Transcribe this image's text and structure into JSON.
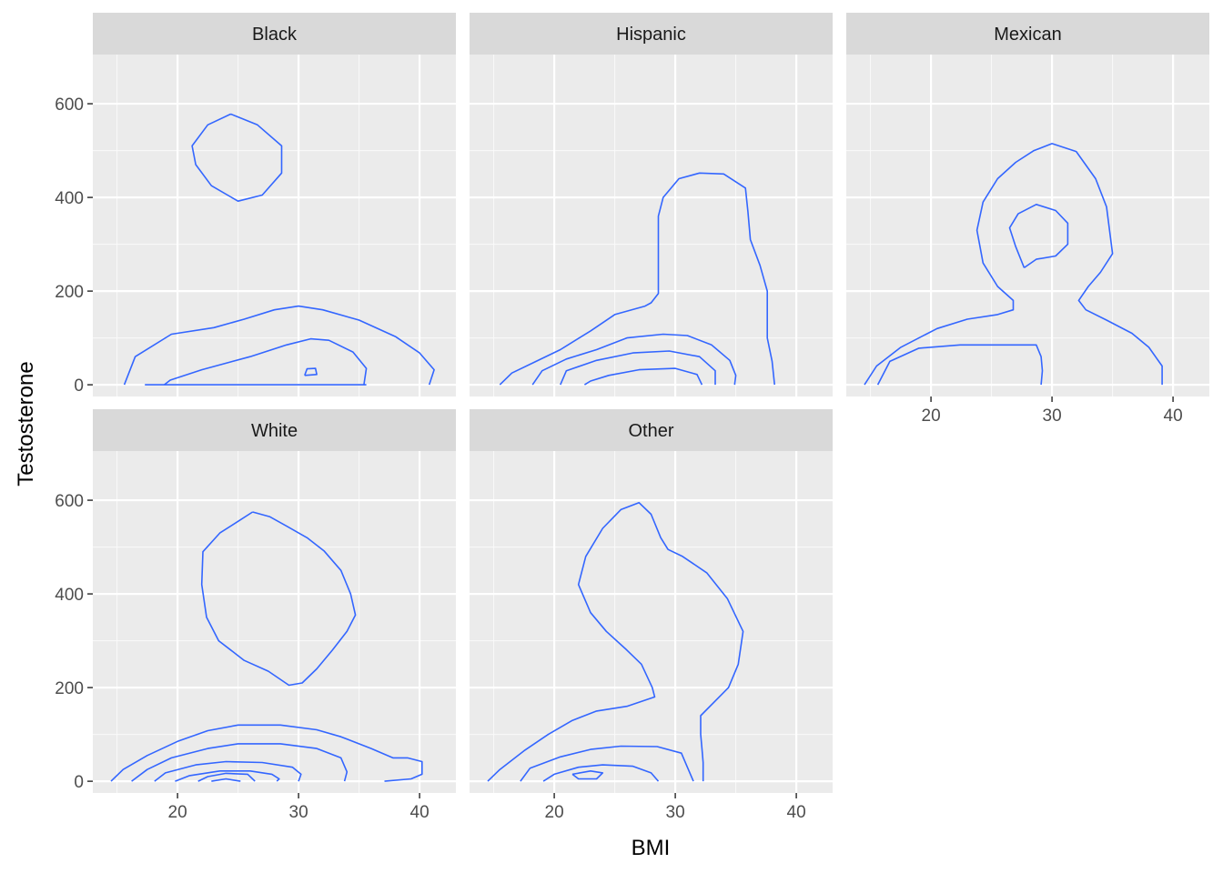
{
  "chart_data": {
    "type": "contour",
    "xlabel": "BMI",
    "ylabel": "Testosterone",
    "xlim": [
      13,
      43
    ],
    "ylim": [
      -25,
      705
    ],
    "x_ticks": [
      20,
      30,
      40
    ],
    "y_ticks": [
      0,
      200,
      400,
      600
    ],
    "x_tick_labels": [
      "20",
      "30",
      "40"
    ],
    "y_tick_labels": [
      "0",
      "200",
      "400",
      "600"
    ],
    "grid": true,
    "line_color": "#3366ff",
    "panel_background": "#ebebeb",
    "strip_background": "#d9d9d9",
    "facets": [
      {
        "name": "Black",
        "contours": [
          [
            [
              24.4,
              578
            ],
            [
              26.6,
              555
            ],
            [
              28.6,
              510
            ],
            [
              28.6,
              452
            ],
            [
              27,
              405
            ],
            [
              25,
              392
            ],
            [
              22.8,
              425
            ],
            [
              21.5,
              470
            ],
            [
              21.2,
              510
            ],
            [
              22.5,
              555
            ],
            [
              24.4,
              578
            ]
          ],
          [
            [
              15.6,
              0
            ],
            [
              16.5,
              60
            ],
            [
              19.5,
              108
            ],
            [
              23,
              122
            ],
            [
              25.5,
              140
            ],
            [
              28,
              160
            ],
            [
              30,
              168
            ],
            [
              32,
              160
            ],
            [
              35,
              138
            ],
            [
              38,
              103
            ],
            [
              40,
              68
            ],
            [
              41.2,
              32
            ],
            [
              40.8,
              0
            ]
          ],
          [
            [
              17.3,
              0
            ],
            [
              26.2,
              0
            ],
            [
              29.5,
              0
            ],
            [
              35.6,
              0
            ]
          ],
          [
            [
              18.9,
              0
            ],
            [
              19.4,
              10
            ],
            [
              22,
              32
            ],
            [
              26,
              60
            ],
            [
              29,
              85
            ],
            [
              31,
              98
            ],
            [
              32.5,
              95
            ],
            [
              34.5,
              70
            ],
            [
              35.6,
              35
            ],
            [
              35.4,
              0
            ]
          ],
          [
            [
              30.5,
              20
            ],
            [
              31.5,
              22
            ],
            [
              31.4,
              35
            ],
            [
              30.7,
              34
            ],
            [
              30.5,
              20
            ]
          ]
        ]
      },
      {
        "name": "Hispanic",
        "contours": [
          [
            [
              15.5,
              0
            ],
            [
              16.5,
              25
            ],
            [
              18.5,
              50
            ],
            [
              20.5,
              75
            ],
            [
              23,
              115
            ],
            [
              25,
              150
            ],
            [
              27.5,
              168
            ],
            [
              28,
              175
            ],
            [
              28.6,
              195
            ],
            [
              28.6,
              265
            ],
            [
              28.6,
              360
            ],
            [
              29,
              400
            ],
            [
              30.3,
              440
            ],
            [
              32,
              452
            ],
            [
              34,
              450
            ],
            [
              35.8,
              420
            ],
            [
              36,
              370
            ],
            [
              36.2,
              310
            ],
            [
              37,
              255
            ],
            [
              37.6,
              200
            ],
            [
              37.6,
              150
            ],
            [
              37.6,
              100
            ],
            [
              38,
              50
            ],
            [
              38.2,
              0
            ]
          ],
          [
            [
              18.2,
              0
            ],
            [
              19,
              30
            ],
            [
              21,
              55
            ],
            [
              23.5,
              75
            ],
            [
              26,
              100
            ],
            [
              29,
              108
            ],
            [
              31,
              105
            ],
            [
              33,
              85
            ],
            [
              34.5,
              52
            ],
            [
              35,
              20
            ],
            [
              34.9,
              0
            ]
          ],
          [
            [
              20.5,
              0
            ],
            [
              21,
              30
            ],
            [
              23.5,
              52
            ],
            [
              26.5,
              68
            ],
            [
              29.5,
              72
            ],
            [
              32,
              60
            ],
            [
              33.3,
              30
            ],
            [
              33.3,
              0
            ]
          ],
          [
            [
              22.5,
              0
            ],
            [
              23,
              8
            ],
            [
              24.5,
              20
            ],
            [
              27,
              32
            ],
            [
              30,
              35
            ],
            [
              31.8,
              22
            ],
            [
              32.2,
              0
            ]
          ]
        ]
      },
      {
        "name": "Mexican",
        "contours": [
          [
            [
              14.5,
              0
            ],
            [
              15.5,
              40
            ],
            [
              17.5,
              80
            ],
            [
              20.5,
              120
            ],
            [
              23,
              140
            ],
            [
              25.5,
              150
            ],
            [
              26.8,
              160
            ],
            [
              26.8,
              180
            ],
            [
              25.5,
              210
            ],
            [
              24.3,
              260
            ],
            [
              23.8,
              330
            ],
            [
              24.3,
              390
            ],
            [
              25.5,
              440
            ],
            [
              27,
              475
            ],
            [
              28.5,
              500
            ],
            [
              30,
              515
            ],
            [
              32,
              498
            ],
            [
              33.6,
              440
            ],
            [
              34.5,
              380
            ],
            [
              35,
              280
            ],
            [
              34,
              240
            ],
            [
              33,
              210
            ],
            [
              32.2,
              180
            ],
            [
              32.8,
              160
            ],
            [
              34.5,
              138
            ],
            [
              36.6,
              110
            ],
            [
              38,
              80
            ],
            [
              39.1,
              40
            ],
            [
              39.1,
              0
            ]
          ],
          [
            [
              15.6,
              0
            ],
            [
              16.6,
              50
            ],
            [
              19,
              78
            ],
            [
              22.4,
              85
            ],
            [
              24.6,
              85
            ],
            [
              27.1,
              85
            ],
            [
              28.7,
              85
            ],
            [
              29.1,
              60
            ],
            [
              29.2,
              30
            ],
            [
              29.1,
              0
            ]
          ],
          [
            [
              27.7,
              250
            ],
            [
              28.7,
              268
            ],
            [
              30.3,
              275
            ],
            [
              31.3,
              300
            ],
            [
              31.3,
              345
            ],
            [
              30.3,
              372
            ],
            [
              28.7,
              385
            ],
            [
              27.2,
              365
            ],
            [
              26.5,
              335
            ],
            [
              27,
              295
            ],
            [
              27.7,
              250
            ]
          ]
        ]
      },
      {
        "name": "White",
        "contours": [
          [
            [
              26.2,
              575
            ],
            [
              27.6,
              565
            ],
            [
              29,
              545
            ],
            [
              30.7,
              520
            ],
            [
              32.1,
              492
            ],
            [
              33.5,
              450
            ],
            [
              34.3,
              400
            ],
            [
              34.7,
              355
            ],
            [
              34,
              320
            ],
            [
              32.8,
              280
            ],
            [
              31.5,
              240
            ],
            [
              30.3,
              210
            ],
            [
              29.2,
              205
            ],
            [
              27.5,
              235
            ],
            [
              25.5,
              258
            ],
            [
              23.4,
              300
            ],
            [
              22.4,
              350
            ],
            [
              22,
              420
            ],
            [
              22.1,
              490
            ],
            [
              23.5,
              530
            ],
            [
              25,
              555
            ],
            [
              26.2,
              575
            ]
          ],
          [
            [
              14.5,
              0
            ],
            [
              15.5,
              25
            ],
            [
              17.5,
              55
            ],
            [
              20,
              85
            ],
            [
              22.5,
              108
            ],
            [
              25,
              120
            ],
            [
              28.5,
              120
            ],
            [
              31.5,
              110
            ],
            [
              33.5,
              95
            ],
            [
              36,
              70
            ],
            [
              37.8,
              50
            ],
            [
              39,
              50
            ],
            [
              40.2,
              42
            ],
            [
              40.2,
              15
            ],
            [
              39.3,
              5
            ],
            [
              37.1,
              0
            ]
          ],
          [
            [
              16.2,
              0
            ],
            [
              17.5,
              25
            ],
            [
              19.5,
              50
            ],
            [
              22.5,
              70
            ],
            [
              25,
              80
            ],
            [
              28.5,
              80
            ],
            [
              31.5,
              70
            ],
            [
              33.5,
              50
            ],
            [
              34,
              20
            ],
            [
              33.8,
              0
            ]
          ],
          [
            [
              18.1,
              0
            ],
            [
              19,
              18
            ],
            [
              21.5,
              35
            ],
            [
              24,
              42
            ],
            [
              27,
              40
            ],
            [
              29.5,
              30
            ],
            [
              30.2,
              15
            ],
            [
              30,
              0
            ]
          ],
          [
            [
              19.8,
              0
            ],
            [
              21,
              12
            ],
            [
              23.5,
              22
            ],
            [
              26,
              22
            ],
            [
              27.8,
              15
            ],
            [
              28.4,
              5
            ],
            [
              28.2,
              0
            ]
          ],
          [
            [
              21.7,
              0
            ],
            [
              22.5,
              10
            ],
            [
              24,
              17
            ],
            [
              25.8,
              15
            ],
            [
              26.4,
              0
            ]
          ],
          [
            [
              22.8,
              0
            ],
            [
              24,
              5
            ],
            [
              25.2,
              0
            ]
          ]
        ]
      },
      {
        "name": "Other",
        "contours": [
          [
            [
              14.5,
              0
            ],
            [
              15.5,
              25
            ],
            [
              17.5,
              65
            ],
            [
              19.5,
              100
            ],
            [
              21.5,
              130
            ],
            [
              23.5,
              150
            ],
            [
              26,
              160
            ],
            [
              28.3,
              180
            ],
            [
              28.1,
              200
            ],
            [
              27.2,
              250
            ],
            [
              26,
              280
            ],
            [
              24.3,
              320
            ],
            [
              23,
              360
            ],
            [
              22,
              420
            ],
            [
              22.6,
              480
            ],
            [
              24,
              540
            ],
            [
              25.5,
              580
            ],
            [
              27,
              595
            ],
            [
              28,
              570
            ],
            [
              28.8,
              520
            ],
            [
              29.4,
              495
            ],
            [
              30.6,
              480
            ],
            [
              32.6,
              445
            ],
            [
              34.3,
              390
            ],
            [
              35.6,
              320
            ],
            [
              35.2,
              250
            ],
            [
              34.4,
              200
            ],
            [
              32.1,
              140
            ],
            [
              32.1,
              100
            ],
            [
              32.2,
              70
            ],
            [
              32.3,
              40
            ],
            [
              32.3,
              0
            ]
          ],
          [
            [
              17.2,
              0
            ],
            [
              18,
              28
            ],
            [
              20.5,
              52
            ],
            [
              23,
              68
            ],
            [
              25.5,
              75
            ],
            [
              28.5,
              74
            ],
            [
              30.5,
              60
            ],
            [
              31,
              30
            ],
            [
              31.5,
              0
            ]
          ],
          [
            [
              19.1,
              0
            ],
            [
              20,
              15
            ],
            [
              22,
              30
            ],
            [
              24,
              35
            ],
            [
              26.5,
              32
            ],
            [
              28,
              18
            ],
            [
              28.6,
              0
            ]
          ],
          [
            [
              21.5,
              15
            ],
            [
              23,
              22
            ],
            [
              24,
              18
            ],
            [
              23.5,
              5
            ],
            [
              22,
              5
            ],
            [
              21.5,
              15
            ]
          ]
        ]
      }
    ]
  }
}
